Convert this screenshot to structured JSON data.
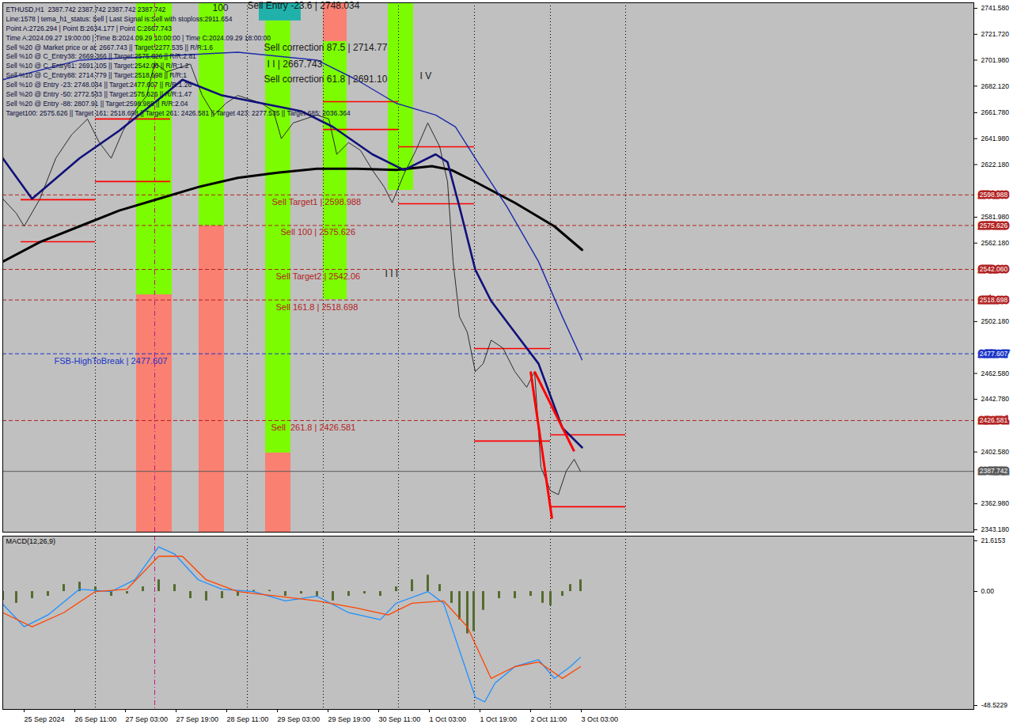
{
  "chart_data": [
    {
      "type": "line",
      "info_text": [
        "ETHUSD,H1  2387.742 2387.742 2387.742 2387.742",
        "Line:1578 | tema_h1_status: Sell | Last Signal is:Sell with stoploss:2911.654",
        "Point A:2726.294 | Point B:2634.177 | Point C:2667.743",
        "Time A:2024.09.27 19:00:00 | Time B:2024.09.29 10:00:00 | Time C:2024.09.29 18:00:00",
        "Sell %20 @ Market price or at: 2667.743 || Target:2277.535 || R/R:1.6",
        "Sell %10 @ C_Entry38: 2669.366 || Target:2575.626 || R/R:2.81",
        "Sell %10 @ C_Entry61: 2691.105 || Target:2542.06 || R/R:1.2",
        "Sell %10 @ C_Entry88: 2714.779 || Target:2518.698 || R/R:1",
        "Sell %10 @ Entry -23: 2748.034 || Target:2477.607 || R/R:1.26",
        "Sell %20 @ Entry -50: 2772.533 || Target:2575.626 || R/R:1.47",
        "Sell %20 @ Entry -88: 2807.91 || Target:2598.988 || R/R:2.04",
        "Target100: 2575.626 || Target 161: 2518.698 || Target 261: 2426.581 || Target 423: 2277.535 || Target 685: 2036.364"
      ],
      "xlim": [
        -6.75,
        300
      ],
      "ylim": [
        2341.3,
        2745.8
      ],
      "yticks": [
        {
          "value": 2741.58,
          "label": "2741.580"
        },
        {
          "value": 2721.72,
          "label": "2721.720"
        },
        {
          "value": 2701.98,
          "label": "2701.980"
        },
        {
          "value": 2682.12,
          "label": "2682.120"
        },
        {
          "value": 2661.78,
          "label": "2661.780"
        },
        {
          "value": 2641.98,
          "label": "2641.980"
        },
        {
          "value": 2622.18,
          "label": "2622.180"
        },
        {
          "value": 2581.98,
          "label": "2581.980"
        },
        {
          "value": 2562.18,
          "label": "2562.180"
        },
        {
          "value": 2502.18,
          "label": "2502.180"
        },
        {
          "value": 2462.58,
          "label": "2462.580"
        },
        {
          "value": 2442.78,
          "label": "2442.780"
        },
        {
          "value": 2402.58,
          "label": "2402.580"
        },
        {
          "value": 2362.98,
          "label": "2362.980"
        },
        {
          "value": 2343.18,
          "label": "2343.180"
        }
      ],
      "tick_labels": "y",
      "grid": false,
      "series": [
        {
          "color": "#2b2b2b",
          "line_style": "solid",
          "x": [
            -6.75,
            -2.5,
            0,
            5,
            10,
            15,
            20,
            23.75,
            27.5,
            31.25,
            35,
            38.75,
            41.25,
            45,
            48.75,
            52.5,
            56.25,
            60,
            63.75,
            67.5,
            71.25,
            75,
            78.75,
            81.25,
            85,
            88.75,
            92.5,
            96.25,
            98.75,
            102.5,
            106.25,
            110,
            113.75,
            116.25,
            120,
            123.75,
            127.5,
            131.25,
            133.75,
            135.5,
            137.5,
            140,
            142.5,
            145,
            147.5,
            151.25,
            155,
            158.75,
            161.25,
            163.25,
            166.25,
            168.75,
            171.25,
            173.75,
            175.75
          ],
          "values": [
            2596,
            2585,
            2575,
            2596,
            2627,
            2645,
            2657,
            2639,
            2627,
            2648,
            2663,
            2675,
            2700,
            2693,
            2696,
            2699,
            2675,
            2660,
            2669,
            2675,
            2672,
            2669,
            2663,
            2642,
            2654,
            2657,
            2660,
            2657,
            2630,
            2639,
            2633,
            2618,
            2605,
            2593,
            2615,
            2633,
            2654,
            2636,
            2609,
            2548,
            2506,
            2494,
            2464,
            2470,
            2488,
            2482,
            2464,
            2452,
            2464,
            2391,
            2373,
            2370,
            2388,
            2397,
            2387.742
          ]
        },
        {
          "color": "#000000",
          "line_style": "solid",
          "x": [
            -6.75,
            5,
            17.5,
            30,
            42.5,
            55,
            67.5,
            80,
            92.5,
            105,
            117.5,
            128.75,
            135,
            142.5,
            155,
            167.5,
            176.25
          ],
          "values": [
            2548,
            2563,
            2575,
            2587,
            2596,
            2605,
            2612,
            2616,
            2619,
            2619,
            2618,
            2621,
            2618,
            2609,
            2593,
            2575,
            2557
          ]
        },
        {
          "color": "#10107a",
          "line_style": "solid",
          "x": [
            -6.75,
            2.5,
            17.5,
            30,
            42.5,
            50,
            62.5,
            75,
            87.5,
            97.5,
            110,
            120,
            130,
            133.75,
            137.5,
            142.5,
            147.5,
            155,
            162.5,
            170,
            176.25
          ],
          "values": [
            2627,
            2596,
            2627,
            2648,
            2672,
            2687,
            2675,
            2669,
            2663,
            2651,
            2630,
            2618,
            2630,
            2624,
            2590,
            2542,
            2518,
            2494,
            2470,
            2421,
            2406
          ]
        },
        {
          "color": "#1c2aa8",
          "line_style": "solid",
          "x": [
            -6.75,
            17.5,
            42.5,
            67.5,
            92.5,
            105,
            117.5,
            130,
            136.25,
            142.5,
            152.5,
            162.5,
            170,
            176.25
          ],
          "values": [
            2687,
            2702,
            2705,
            2708,
            2702,
            2687,
            2669,
            2660,
            2651,
            2627,
            2590,
            2548,
            2506,
            2473
          ]
        }
      ],
      "levels": [
        {
          "value": 2598.988,
          "label": "2598.988",
          "text": "Sell Target1 | 2598.988",
          "text_x": 78.25,
          "color": "#b22222",
          "line_style": "dashed"
        },
        {
          "value": 2575.626,
          "label": "2575.626",
          "text": "Sell 100 | 2575.626",
          "text_x": 81,
          "color": "#b22222",
          "line_style": "dashed"
        },
        {
          "value": 2542.06,
          "label": "2542.060",
          "text": "Sell Target2 | 2542.06",
          "text_x": 79.5,
          "color": "#b22222",
          "line_style": "dashed"
        },
        {
          "value": 2518.698,
          "label": "2518.698",
          "text": "Sell 161.8 | 2518.698",
          "text_x": 79.5,
          "color": "#b22222",
          "line_style": "dashed"
        },
        {
          "value": 2477.607,
          "label": "2477.607",
          "text": "FSB-HighToBreak | 2477.607",
          "text_x": 9.5,
          "color": "#1a35c8",
          "line_style": "dashed"
        },
        {
          "value": 2426.581,
          "label": "2426.581",
          "text": "Sell  261.8 | 2426.581",
          "text_x": 78,
          "color": "#b22222",
          "line_style": "dashed"
        },
        {
          "value": 2387.742,
          "label": "2387.742",
          "color": "#5a5a5a",
          "line_style": "solid"
        }
      ],
      "zones": [
        {
          "x1": 35.5,
          "x2": 46.75,
          "y1": 2522.7,
          "y2": 2745.8,
          "color": "#7cfc00"
        },
        {
          "x1": 35.5,
          "x2": 46.75,
          "y1": 2341.3,
          "y2": 2522.7,
          "color": "#fa8072"
        },
        {
          "x1": 55.25,
          "x2": 63.25,
          "y1": 2575.3,
          "y2": 2745.8,
          "color": "#7cfc00"
        },
        {
          "x1": 55.25,
          "x2": 63.25,
          "y1": 2341.3,
          "y2": 2575.3,
          "color": "#fa8072"
        },
        {
          "x1": 76.25,
          "x2": 84.25,
          "y1": 2401.8,
          "y2": 2732,
          "color": "#7cfc00"
        },
        {
          "x1": 76.25,
          "x2": 84.25,
          "y1": 2341.3,
          "y2": 2401.8,
          "color": "#fa8072"
        },
        {
          "x1": 74.25,
          "x2": 87.5,
          "y1": 2732,
          "y2": 2745.8,
          "color": "#20b2aa"
        },
        {
          "x1": 94.5,
          "x2": 102,
          "y1": 2716.2,
          "y2": 2745.8,
          "color": "#fa8072"
        },
        {
          "x1": 94.5,
          "x2": 102,
          "y1": 2519,
          "y2": 2716.2,
          "color": "#7cfc00"
        },
        {
          "x1": 115,
          "x2": 123,
          "y1": 2602.5,
          "y2": 2745.8,
          "color": "#7cfc00"
        }
      ],
      "segments": [
        {
          "x1": -1,
          "x2": 22.5,
          "y": 2595.3,
          "color": "#ff0000"
        },
        {
          "x1": -1,
          "x2": 22.5,
          "y": 2563.2,
          "color": "#ff0000"
        },
        {
          "x1": 22.5,
          "x2": 46.25,
          "y": 2657,
          "color": "#ff0000"
        },
        {
          "x1": 22.5,
          "x2": 46.25,
          "y": 2609.2,
          "color": "#ff0000"
        },
        {
          "x1": 94.5,
          "x2": 118.25,
          "y": 2670.2,
          "color": "#ff0000"
        },
        {
          "x1": 94.5,
          "x2": 118.25,
          "y": 2649,
          "color": "#ff0000"
        },
        {
          "x1": 118.25,
          "x2": 142.25,
          "y": 2635.8,
          "color": "#ff0000"
        },
        {
          "x1": 118.25,
          "x2": 142.25,
          "y": 2592.2,
          "color": "#ff0000"
        },
        {
          "x1": 142.25,
          "x2": 166.25,
          "y": 2481.6,
          "color": "#ff0000"
        },
        {
          "x1": 142.25,
          "x2": 166.25,
          "y": 2410.9,
          "color": "#ff0000"
        },
        {
          "x1": 166.25,
          "x2": 190,
          "y": 2415.7,
          "color": "#ff0000"
        },
        {
          "x1": 166.25,
          "x2": 190,
          "y": 2360.7,
          "color": "#ff0000"
        }
      ],
      "trendlines": [
        {
          "x1": 161.25,
          "y1": 2464,
          "x2": 173.75,
          "y2": 2403,
          "color": "#ff0000"
        },
        {
          "x1": 160,
          "y1": 2464,
          "x2": 166.75,
          "y2": 2351.6,
          "color": "#ff0000"
        }
      ],
      "separators": [
        {
          "x": 22.5,
          "color": "#000000"
        },
        {
          "x": 41.25,
          "color": "#c71585"
        },
        {
          "x": 70.5,
          "color": "#000000"
        },
        {
          "x": 94.5,
          "color": "#000000"
        },
        {
          "x": 118.25,
          "color": "#000000"
        },
        {
          "x": 142.25,
          "color": "#000000"
        },
        {
          "x": 166.25,
          "color": "#000000"
        },
        {
          "x": 190,
          "color": "#000000"
        }
      ],
      "annotations": [
        {
          "text": "Sell Entry -23.6 | 2748.034",
          "x": 70.5,
          "y": 2743.5
        },
        {
          "text": "Sell correction 87.5 | 2714.77",
          "x": 75.75,
          "y": 2711.4
        },
        {
          "text": "I I | 2667.743",
          "x": 76.75,
          "y": 2699
        },
        {
          "text": "Sell correction 61.8 | 2691.10",
          "x": 75.75,
          "y": 2687.2
        },
        {
          "text": "I V",
          "x": 125,
          "y": 2689.6
        },
        {
          "text": "I I I",
          "x": 114,
          "y": 2538.4
        },
        {
          "text": "100",
          "x": 59.5,
          "y": 2741.6
        }
      ]
    },
    {
      "type": "line",
      "title": "MACD(12,26,9)",
      "xlim": [
        -6.75,
        300
      ],
      "xticks": [
        {
          "value": 0,
          "label": "25 Sep 2024"
        },
        {
          "value": 16,
          "label": "26 Sep 11:00"
        },
        {
          "value": 32,
          "label": "27 Sep 03:00"
        },
        {
          "value": 48,
          "label": "27 Sep 19:00"
        },
        {
          "value": 64,
          "label": "28 Sep 11:00"
        },
        {
          "value": 80,
          "label": "29 Sep 03:00"
        },
        {
          "value": 96,
          "label": "29 Sep 19:00"
        },
        {
          "value": 112,
          "label": "30 Sep 11:00"
        },
        {
          "value": 128,
          "label": "1 Oct 03:00"
        },
        {
          "value": 144,
          "label": "1 Oct 19:00"
        },
        {
          "value": 160,
          "label": "2 Oct 11:00"
        },
        {
          "value": 176,
          "label": "3 Oct 03:00"
        }
      ],
      "ylim": [
        -50.2,
        23.6
      ],
      "yticks": [
        21.6153,
        {
          "value": 0,
          "label": "0.00"
        },
        -48.5229
      ],
      "series": [
        {
          "type": "bar",
          "color": "#556b2f",
          "x": [
            -6.75,
            -2.5,
            2.5,
            7.5,
            12.5,
            17.5,
            22.5,
            27.5,
            32.5,
            37.5,
            42.5,
            47.5,
            52.5,
            57.5,
            62.5,
            67.5,
            72.5,
            77.5,
            82.5,
            87.5,
            92.5,
            97.5,
            102.5,
            107.5,
            112.5,
            117.5,
            122.5,
            127.5,
            131.25,
            135,
            137.5,
            140,
            142,
            145,
            150,
            155,
            160,
            163.75,
            166.25,
            170,
            172.5,
            175.75
          ],
          "values": [
            -3.7,
            -5,
            -3,
            -2,
            3,
            4,
            2,
            -2,
            -1,
            2,
            5,
            3,
            -3,
            -4,
            -3,
            -2,
            0.5,
            0.5,
            -2,
            -1,
            -2,
            -4,
            -2,
            -1,
            -2,
            2,
            5,
            7,
            3,
            -5,
            -12,
            -18,
            -17,
            -8,
            -3,
            -3,
            -2,
            -5,
            -6,
            -2,
            3,
            5
          ]
        },
        {
          "type": "line",
          "color": "#1e90ff",
          "x": [
            -6.75,
            0,
            7.5,
            17.5,
            27.5,
            35,
            42.5,
            47.5,
            55,
            62.5,
            72.5,
            82.5,
            92.5,
            102.5,
            112.5,
            117.5,
            127.5,
            132.5,
            137.5,
            142.5,
            145.5,
            148.75,
            155,
            162.5,
            167.5,
            172.5,
            175.75
          ],
          "values": [
            -5.4,
            -15,
            -10,
            1,
            0,
            5,
            19,
            16,
            5,
            1,
            0,
            -4,
            -2,
            -9,
            -12,
            -5,
            0,
            -5,
            -25,
            -45,
            -47,
            -39,
            -32,
            -29,
            -37,
            -32,
            -28
          ]
        },
        {
          "type": "line",
          "color": "#ff4500",
          "x": [
            -6.75,
            2.5,
            12.5,
            22.5,
            32.5,
            42.5,
            50,
            57.5,
            67.5,
            80,
            92.5,
            105,
            115,
            122.5,
            132.5,
            140,
            147.5,
            155,
            162.5,
            170,
            175.75
          ],
          "values": [
            -9,
            -15,
            -9,
            0,
            1,
            15,
            15,
            5,
            0,
            -2,
            -4,
            -7,
            -10,
            -5,
            -4,
            -15,
            -37,
            -32,
            -30,
            -37,
            -32
          ]
        }
      ]
    }
  ]
}
